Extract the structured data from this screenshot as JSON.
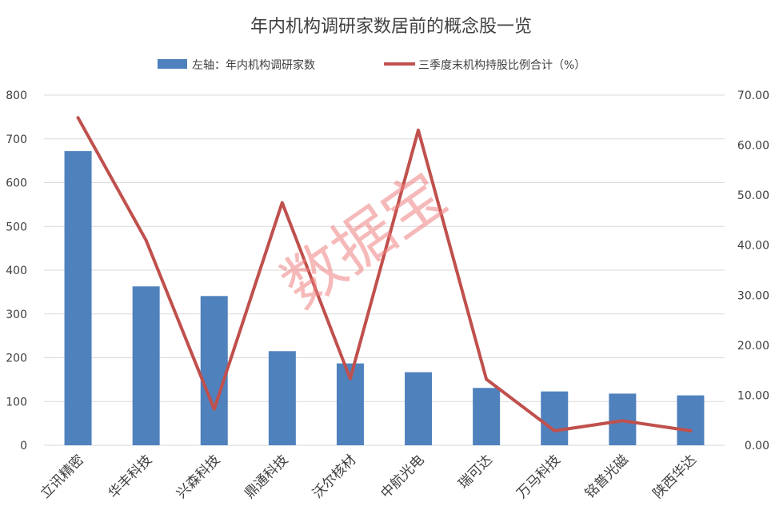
{
  "chart_data": {
    "type": "bar",
    "title": "年内机构调研家数居前的概念股一览",
    "categories": [
      "立讯精密",
      "华丰科技",
      "兴森科技",
      "鼎通科技",
      "沃尔核材",
      "中航光电",
      "瑞可达",
      "万马科技",
      "铭普光磁",
      "陕西华达"
    ],
    "series": [
      {
        "name": "左轴：年内机构调研家数",
        "type": "bar",
        "axis": "left",
        "color": "#4f81bd",
        "values": [
          672,
          363,
          341,
          215,
          187,
          167,
          131,
          123,
          118,
          114
        ]
      },
      {
        "name": "三季度末机构持股比例合计（%）",
        "type": "line",
        "axis": "right",
        "color": "#c0504d",
        "values": [
          65.5,
          41.0,
          7.2,
          48.5,
          13.3,
          63.0,
          13.2,
          2.9,
          4.9,
          2.9
        ]
      }
    ],
    "y_left": {
      "min": 0,
      "max": 800,
      "ticks": [
        "0",
        "100",
        "200",
        "300",
        "400",
        "500",
        "600",
        "700",
        "800"
      ]
    },
    "y_right": {
      "min": 0,
      "max": 70,
      "ticks": [
        "0.00",
        "10.00",
        "20.00",
        "30.00",
        "40.00",
        "50.00",
        "60.00",
        "70.00"
      ]
    },
    "grid": true,
    "legend_position": "top",
    "watermark": "数据宝"
  }
}
